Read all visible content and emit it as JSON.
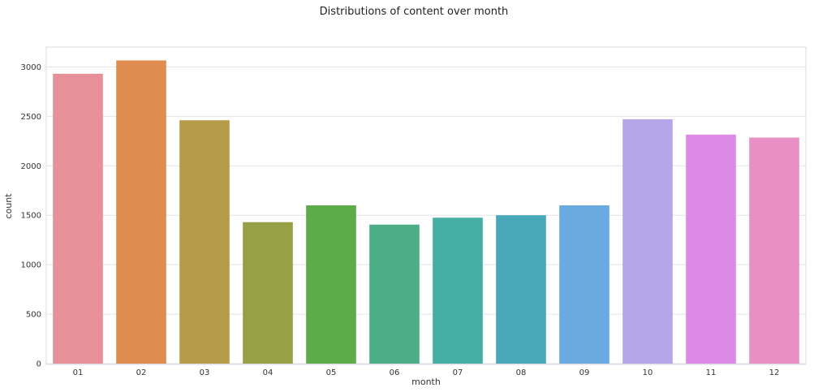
{
  "chart_data": {
    "type": "bar",
    "title": "Distributions of content over month",
    "xlabel": "month",
    "ylabel": "count",
    "categories": [
      "01",
      "02",
      "03",
      "04",
      "05",
      "06",
      "07",
      "08",
      "09",
      "10",
      "11",
      "12"
    ],
    "values": [
      2930,
      3065,
      2460,
      1430,
      1600,
      1405,
      1475,
      1500,
      1600,
      2470,
      2315,
      2285
    ],
    "ylim": [
      0,
      3200
    ],
    "yticks": [
      0,
      500,
      1000,
      1500,
      2000,
      2500,
      3000
    ],
    "grid": true,
    "legend": "none",
    "colors": [
      "#e8909a",
      "#de8c4f",
      "#b49c48",
      "#98a046",
      "#5cad4a",
      "#4bae87",
      "#44aea4",
      "#48a8ba",
      "#6aaae0",
      "#b5a6ea",
      "#dd8ae6",
      "#e88fc6"
    ]
  }
}
